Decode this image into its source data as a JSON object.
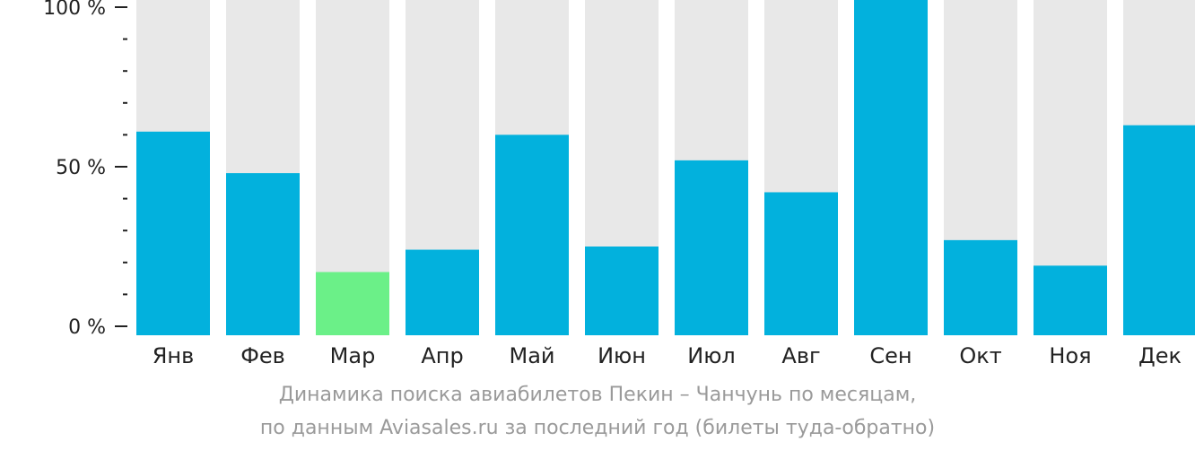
{
  "chart_data": {
    "type": "bar",
    "categories": [
      "Янв",
      "Фев",
      "Мар",
      "Апр",
      "Май",
      "Июн",
      "Июл",
      "Авг",
      "Сен",
      "Окт",
      "Ноя",
      "Дек"
    ],
    "values": [
      61,
      48,
      17,
      24,
      60,
      25,
      52,
      42,
      100,
      27,
      19,
      63
    ],
    "ylim": [
      0,
      100
    ],
    "yticks": [
      {
        "value": 100,
        "label": "100 %"
      },
      {
        "value": 50,
        "label": "50 %"
      },
      {
        "value": 0,
        "label": "0 %"
      }
    ],
    "minor_tick_step": 10,
    "highlight_category": "Мар",
    "colors": {
      "bar": "#02b1dd",
      "highlight": "#6bf088",
      "background_bar": "#e8e8e8",
      "axis": "#222222"
    },
    "caption_lines": [
      "Динамика поиска авиабилетов Пекин – Чанчунь по месяцам,",
      "по данным Aviasales.ru за последний год (билеты туда-обратно)"
    ]
  }
}
